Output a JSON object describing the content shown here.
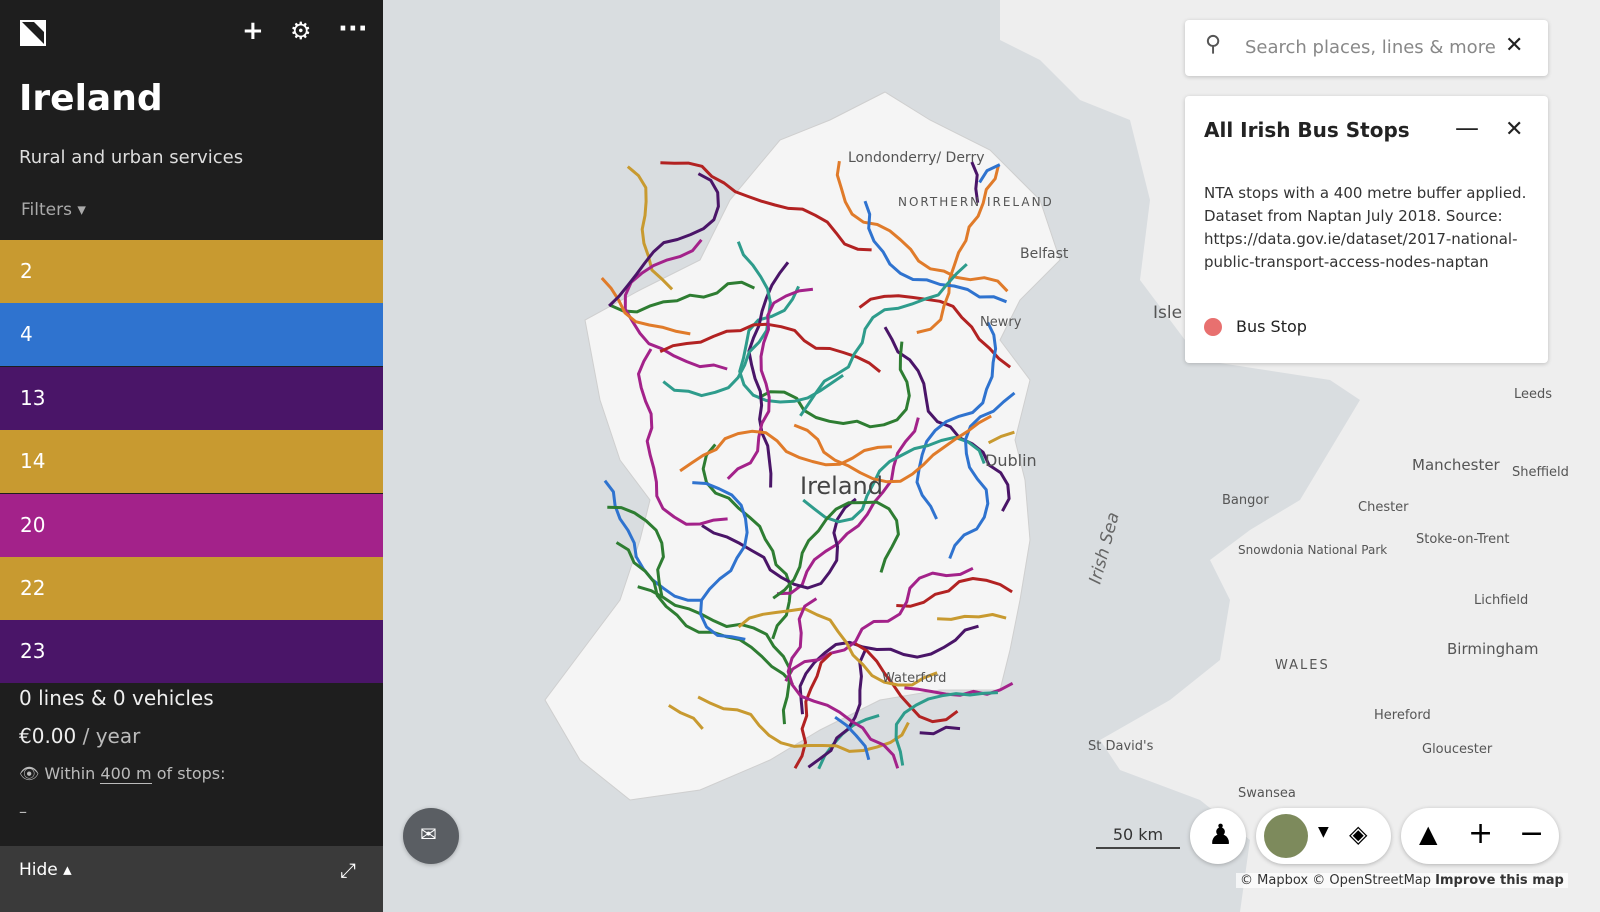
{
  "sidebar": {
    "title": "Ireland",
    "subtitle": "Rural and urban services",
    "filters": "Filters",
    "lines": [
      {
        "label": "2",
        "color": "#c89a30"
      },
      {
        "label": "4",
        "color": "#2f73cf"
      },
      {
        "label": "13",
        "color": "#4a1568"
      },
      {
        "label": "14",
        "color": "#c89a30"
      },
      {
        "label": "20",
        "color": "#a3228a"
      },
      {
        "label": "22",
        "color": "#c89a30"
      },
      {
        "label": "23",
        "color": "#4a1568"
      }
    ],
    "summary": {
      "count": "0 lines & 0 vehicles",
      "cost": "€0.00",
      "cost_unit": "/ year",
      "within": "Within",
      "distance": "400 m",
      "of_stops": "of stops:",
      "coverage": "–"
    },
    "hide": "Hide"
  },
  "search": {
    "placeholder": "Search places, lines & more"
  },
  "layer_panel": {
    "title": "All Irish Bus Stops",
    "description": "NTA stops with a 400 metre buffer applied. Dataset from Naptan July 2018. Source: https://data.gov.ie/dataset/2017-national-public-transport-access-nodes-naptan",
    "legend": [
      {
        "label": "Bus Stop",
        "color": "#e8706f"
      }
    ]
  },
  "map": {
    "labels": [
      "Londonderry/ Derry",
      "NORTHERN IRELAND",
      "Belfast",
      "Newry",
      "Isle",
      "Leeds",
      "Manchester",
      "Sheffield",
      "Dublin",
      "Ireland",
      "Bangor",
      "Chester",
      "Snowdonia National Park",
      "Stoke-on-Trent",
      "Lichfield",
      "WALES",
      "Birmingham",
      "Waterford",
      "Hereford",
      "Gloucester",
      "St David's",
      "Swansea",
      "Irish Sea"
    ],
    "scale": "50 km",
    "attribution": [
      "© Mapbox",
      "© OpenStreetMap",
      "Improve this map"
    ]
  }
}
